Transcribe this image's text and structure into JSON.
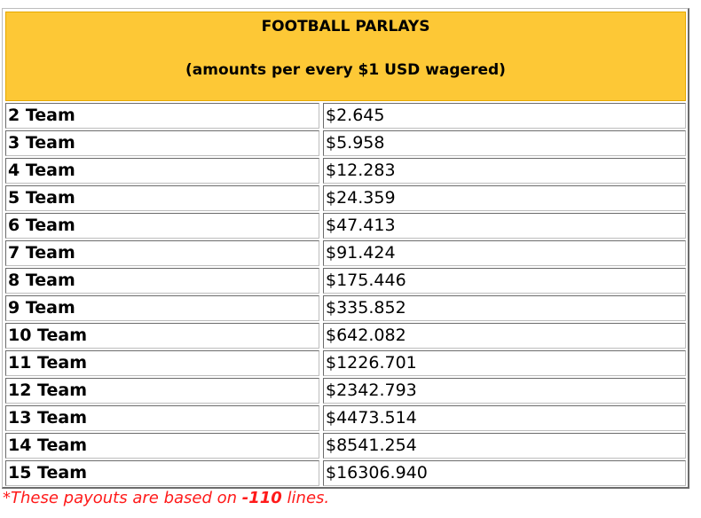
{
  "table": {
    "title": "FOOTBALL PARLAYS",
    "subtitle": "(amounts per every $1 USD wagered)",
    "rows": [
      {
        "team": "2 Team",
        "payout": "$2.645"
      },
      {
        "team": "3 Team",
        "payout": "$5.958"
      },
      {
        "team": "4 Team",
        "payout": "$12.283"
      },
      {
        "team": "5 Team",
        "payout": "$24.359"
      },
      {
        "team": "6 Team",
        "payout": "$47.413"
      },
      {
        "team": "7 Team",
        "payout": "$91.424"
      },
      {
        "team": "8 Team",
        "payout": "$175.446"
      },
      {
        "team": "9 Team",
        "payout": "$335.852"
      },
      {
        "team": "10 Team",
        "payout": "$642.082"
      },
      {
        "team": "11 Team",
        "payout": "$1226.701"
      },
      {
        "team": "12 Team",
        "payout": "$2342.793"
      },
      {
        "team": "13 Team",
        "payout": "$4473.514"
      },
      {
        "team": "14 Team",
        "payout": "$8541.254"
      },
      {
        "team": "15 Team",
        "payout": "$16306.940"
      }
    ],
    "header_bg_color": "#fdc836"
  },
  "footnote": {
    "prefix": "*These payouts are based on ",
    "emphasis": "-110",
    "suffix": " lines.",
    "color": "#ff1a1a"
  }
}
